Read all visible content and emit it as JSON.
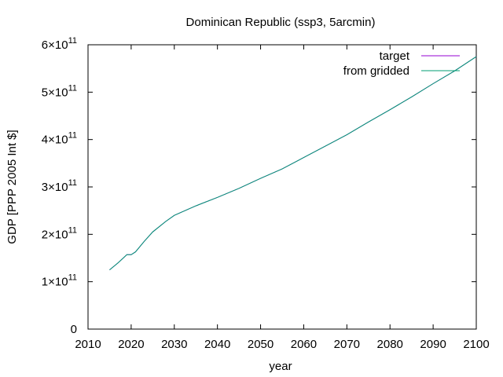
{
  "chart_data": {
    "type": "line",
    "title": "Dominican Republic (ssp3, 5arcmin)",
    "xlabel": "year",
    "ylabel": "GDP [PPP 2005 Int $]",
    "xlim": [
      2010,
      2100
    ],
    "ylim": [
      0,
      600000000000
    ],
    "grid": false,
    "legend_position": "top-right",
    "x_ticks": [
      "2010",
      "2020",
      "2030",
      "2040",
      "2050",
      "2060",
      "2070",
      "2080",
      "2090",
      "2100"
    ],
    "x_tick_values": [
      2010,
      2020,
      2030,
      2040,
      2050,
      2060,
      2070,
      2080,
      2090,
      2100
    ],
    "y_ticks": [
      {
        "value": 0,
        "mantissa": "0",
        "times": "",
        "exponent": ""
      },
      {
        "value": 100000000000,
        "mantissa": "1",
        "times": "×10",
        "exponent": "11"
      },
      {
        "value": 200000000000,
        "mantissa": "2",
        "times": "×10",
        "exponent": "11"
      },
      {
        "value": 300000000000,
        "mantissa": "3",
        "times": "×10",
        "exponent": "11"
      },
      {
        "value": 400000000000,
        "mantissa": "4",
        "times": "×10",
        "exponent": "11"
      },
      {
        "value": 500000000000,
        "mantissa": "5",
        "times": "×10",
        "exponent": "11"
      },
      {
        "value": 600000000000,
        "mantissa": "6",
        "times": "×10",
        "exponent": "11"
      }
    ],
    "x": [
      2015,
      2017,
      2019,
      2020,
      2021,
      2023,
      2025,
      2028,
      2030,
      2035,
      2040,
      2045,
      2050,
      2055,
      2060,
      2065,
      2070,
      2075,
      2080,
      2085,
      2090,
      2095,
      2100
    ],
    "series": [
      {
        "name": "target",
        "color": "#9400d3",
        "values": [
          125000000000,
          140000000000,
          157000000000,
          157000000000,
          163000000000,
          185000000000,
          205000000000,
          227000000000,
          240000000000,
          260000000000,
          278000000000,
          297000000000,
          318000000000,
          338000000000,
          362000000000,
          386000000000,
          410000000000,
          437000000000,
          463000000000,
          490000000000,
          518000000000,
          545000000000,
          575000000000
        ]
      },
      {
        "name": "from gridded",
        "color": "#009e73",
        "values": [
          125000000000,
          140000000000,
          157000000000,
          157000000000,
          163000000000,
          185000000000,
          205000000000,
          227000000000,
          240000000000,
          260000000000,
          278000000000,
          297000000000,
          318000000000,
          338000000000,
          362000000000,
          386000000000,
          410000000000,
          437000000000,
          463000000000,
          490000000000,
          518000000000,
          545000000000,
          575000000000
        ]
      }
    ]
  }
}
